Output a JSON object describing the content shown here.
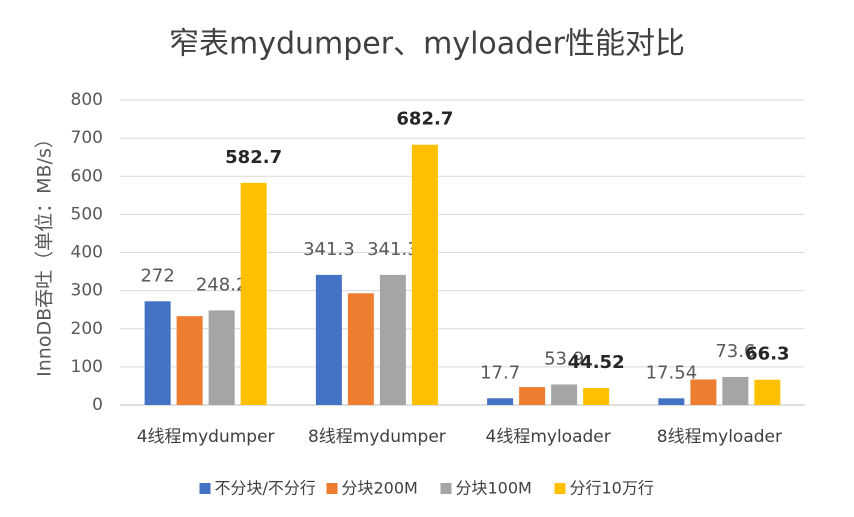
{
  "chart_data": {
    "type": "bar",
    "title": "窄表mydumper、myloader性能对比",
    "y_label": "InnoDB吞吐（单位：MB/s）",
    "categories": [
      "4线程mydumper",
      "8线程mydumper",
      "4线程myloader",
      "8线程myloader"
    ],
    "series": [
      {
        "name": "不分块/不分行",
        "color": "#4472c4",
        "values": [
          272,
          341.3,
          17.7,
          17.54
        ],
        "show_labels": true
      },
      {
        "name": "分块200M",
        "color": "#ed7d31",
        "values": [
          233,
          293,
          47,
          67
        ],
        "show_labels": false
      },
      {
        "name": "分块100M",
        "color": "#a5a5a5",
        "values": [
          248.2,
          341.3,
          53.9,
          73.6
        ],
        "show_labels": true
      },
      {
        "name": "分行10万行",
        "color": "#ffc000",
        "values": [
          582.7,
          682.7,
          44.52,
          66.3
        ],
        "show_labels": true,
        "bold_labels": true
      }
    ],
    "ylim": [
      0,
      800
    ],
    "yticks": [
      0,
      100,
      200,
      300,
      400,
      500,
      600,
      700,
      800
    ],
    "grid": true,
    "legend": "bottom"
  }
}
